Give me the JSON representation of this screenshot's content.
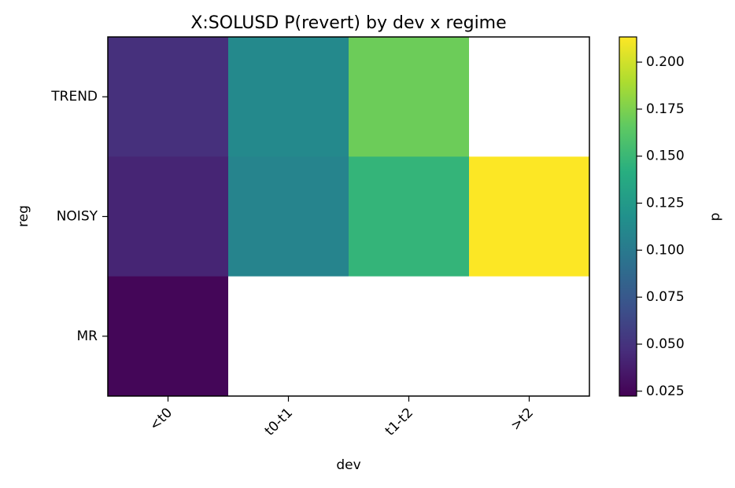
{
  "chart_data": {
    "type": "heatmap",
    "title": "X:SOLUSD P(revert) by dev x regime",
    "xlabel": "dev",
    "ylabel": "reg",
    "x_categories": [
      "<t0",
      "t0-t1",
      "t1-t2",
      ">t2"
    ],
    "y_categories": [
      "TREND",
      "NOISY",
      "MR"
    ],
    "values": [
      [
        0.048,
        0.112,
        0.17,
        null
      ],
      [
        0.042,
        0.108,
        0.147,
        0.213
      ],
      [
        0.025,
        null,
        null,
        null
      ]
    ],
    "colormap": "viridis",
    "missing_color": "#ffffff",
    "colorbar": {
      "label": "p",
      "vmin": 0.0224,
      "vmax": 0.2134,
      "ticks": [
        0.025,
        0.05,
        0.075,
        0.1,
        0.125,
        0.15,
        0.175,
        0.2
      ],
      "tick_labels": [
        "0.025",
        "0.050",
        "0.075",
        "0.100",
        "0.125",
        "0.150",
        "0.175",
        "0.200"
      ]
    }
  }
}
